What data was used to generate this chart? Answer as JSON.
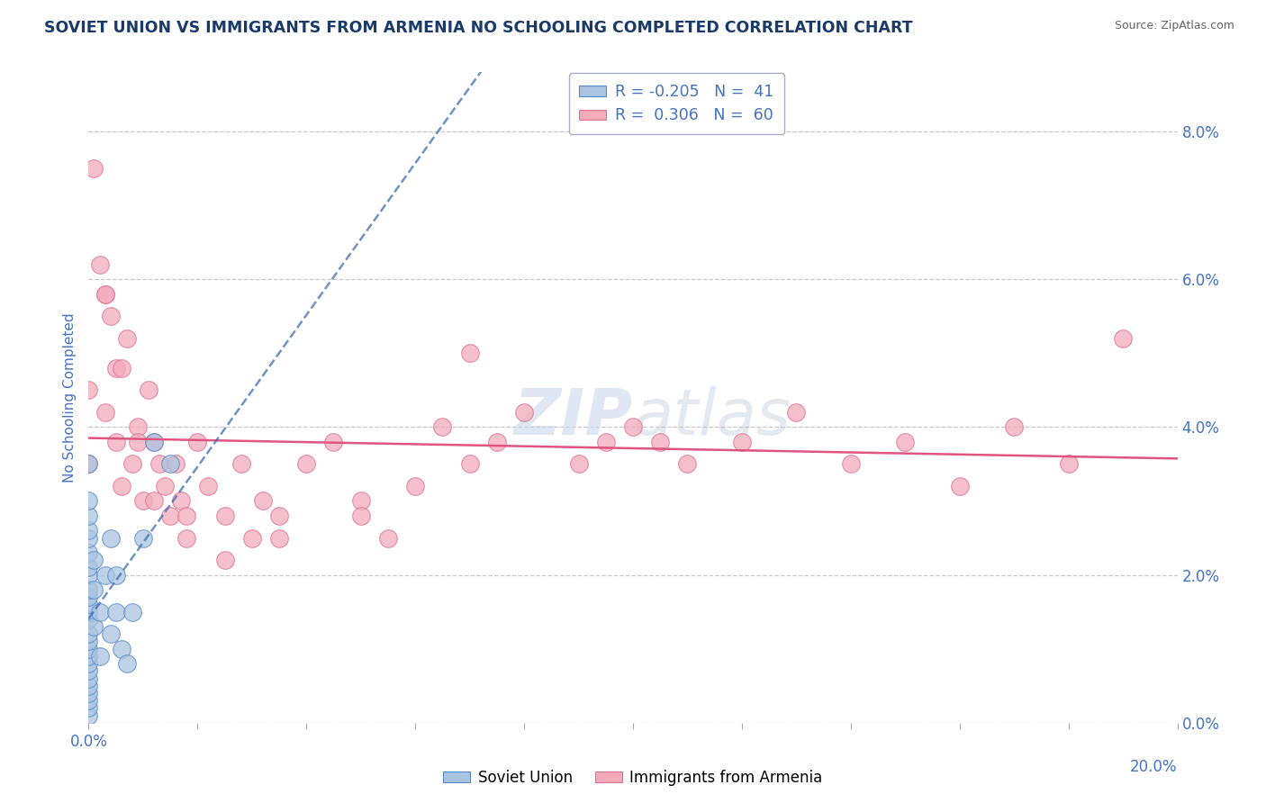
{
  "title": "SOVIET UNION VS IMMIGRANTS FROM ARMENIA NO SCHOOLING COMPLETED CORRELATION CHART",
  "source": "Source: ZipAtlas.com",
  "ylabel": "No Schooling Completed",
  "legend_blue_label": "Soviet Union",
  "legend_pink_label": "Immigrants from Armenia",
  "r_blue": -0.205,
  "n_blue": 41,
  "r_pink": 0.306,
  "n_pink": 60,
  "blue_color": "#aac4e0",
  "blue_edge_color": "#5588cc",
  "blue_line_color": "#3366aa",
  "pink_color": "#f4aabb",
  "pink_edge_color": "#e07090",
  "pink_line_color": "#e05580",
  "watermark_color": "#c8d8ec",
  "title_color": "#1a3a6a",
  "axis_color": "#4472c4",
  "xmin": 0.0,
  "xmax": 20.0,
  "ymin": 0.0,
  "ymax": 8.8,
  "yticks": [
    0.0,
    2.0,
    4.0,
    6.0,
    8.0
  ],
  "blue_x": [
    0.0,
    0.0,
    0.0,
    0.0,
    0.0,
    0.0,
    0.0,
    0.0,
    0.0,
    0.0,
    0.0,
    0.0,
    0.0,
    0.0,
    0.0,
    0.0,
    0.0,
    0.0,
    0.0,
    0.0,
    0.0,
    0.0,
    0.0,
    0.0,
    0.0,
    0.1,
    0.1,
    0.1,
    0.2,
    0.2,
    0.3,
    0.4,
    0.4,
    0.5,
    0.5,
    0.6,
    0.7,
    0.8,
    1.0,
    1.2,
    1.5
  ],
  "blue_y": [
    0.1,
    0.2,
    0.3,
    0.4,
    0.5,
    0.6,
    0.7,
    0.8,
    0.9,
    1.0,
    1.1,
    1.2,
    1.4,
    1.5,
    1.6,
    1.7,
    1.8,
    2.0,
    2.1,
    2.3,
    2.5,
    2.6,
    2.8,
    3.0,
    3.5,
    1.3,
    1.8,
    2.2,
    0.9,
    1.5,
    2.0,
    1.2,
    2.5,
    1.5,
    2.0,
    1.0,
    0.8,
    1.5,
    2.5,
    3.8,
    3.5
  ],
  "pink_x": [
    0.0,
    0.0,
    0.1,
    0.2,
    0.3,
    0.3,
    0.4,
    0.5,
    0.5,
    0.6,
    0.7,
    0.8,
    0.9,
    1.0,
    1.1,
    1.2,
    1.3,
    1.4,
    1.5,
    1.6,
    1.7,
    1.8,
    2.0,
    2.2,
    2.5,
    2.8,
    3.0,
    3.2,
    3.5,
    4.0,
    4.5,
    5.0,
    5.5,
    6.0,
    6.5,
    7.0,
    7.5,
    8.0,
    9.0,
    10.0,
    10.5,
    11.0,
    12.0,
    13.0,
    14.0,
    15.0,
    16.0,
    17.0,
    18.0,
    19.0,
    0.3,
    0.6,
    0.9,
    1.2,
    1.8,
    2.5,
    3.5,
    5.0,
    7.0,
    9.5
  ],
  "pink_y": [
    4.5,
    3.5,
    7.5,
    6.2,
    5.8,
    4.2,
    5.5,
    3.8,
    4.8,
    3.2,
    5.2,
    3.5,
    4.0,
    3.0,
    4.5,
    3.8,
    3.5,
    3.2,
    2.8,
    3.5,
    3.0,
    2.5,
    3.8,
    3.2,
    2.8,
    3.5,
    2.5,
    3.0,
    2.8,
    3.5,
    3.8,
    3.0,
    2.5,
    3.2,
    4.0,
    3.5,
    3.8,
    4.2,
    3.5,
    4.0,
    3.8,
    3.5,
    3.8,
    4.2,
    3.5,
    3.8,
    3.2,
    4.0,
    3.5,
    5.2,
    5.8,
    4.8,
    3.8,
    3.0,
    2.8,
    2.2,
    2.5,
    2.8,
    5.0,
    3.8
  ]
}
